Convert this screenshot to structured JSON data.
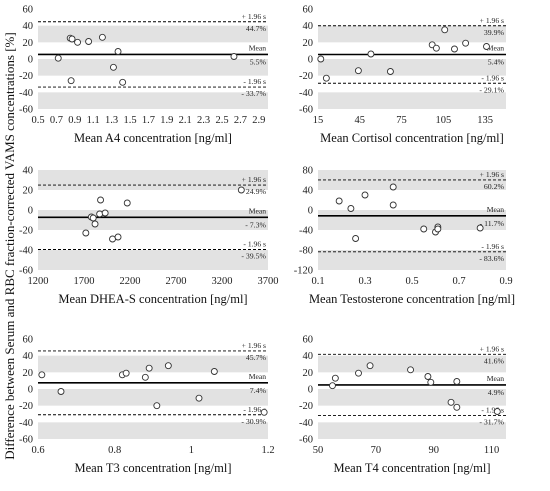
{
  "figure": {
    "ylabel": "Difference between Serum and RBC fraction-corrected VAMS concentrations [%]"
  },
  "chart_data": [
    {
      "type": "scatter",
      "xlabel": "Mean A4  concentration [ng/ml]",
      "xlim": [
        0.5,
        3.0
      ],
      "xticks": [
        0.5,
        0.7,
        0.9,
        1.1,
        1.3,
        1.5,
        1.7,
        1.9,
        2.1,
        2.3,
        2.5,
        2.7,
        2.9
      ],
      "xtick_labels": [
        "0.5",
        "",
        "",
        "",
        "",
        "1.5",
        "",
        "",
        "",
        "",
        "2.5",
        "",
        ""
      ],
      "xtick_labels_shown": [
        "0.5",
        "0.7",
        "0.9",
        "1.1",
        "1.3",
        "1.5",
        "1.7",
        "1.9",
        "2.1",
        "2.3",
        "2.5",
        "2.7",
        "2.9"
      ],
      "ylim": [
        -60,
        60
      ],
      "yticks": [
        -60,
        -40,
        -20,
        0,
        20,
        40,
        60
      ],
      "mean": 5.5,
      "upper": 44.7,
      "lower": -33.7,
      "upper_label": "+ 1.96 s",
      "lower_label": "- 1.96 s",
      "mean_label": "Mean",
      "mean_text": "5.5%",
      "upper_text": "44.7%",
      "lower_text": "- 33.7%",
      "points": [
        [
          0.72,
          1
        ],
        [
          0.85,
          25
        ],
        [
          0.87,
          24
        ],
        [
          0.93,
          20
        ],
        [
          1.05,
          21
        ],
        [
          1.2,
          26
        ],
        [
          1.32,
          -10
        ],
        [
          1.37,
          9
        ],
        [
          1.42,
          -28
        ],
        [
          0.86,
          -26
        ],
        [
          2.63,
          3
        ]
      ]
    },
    {
      "type": "scatter",
      "xlabel": "Mean Cortisol concentration [ng/ml]",
      "xlim": [
        15,
        150
      ],
      "xticks": [
        15,
        45,
        75,
        105,
        135
      ],
      "xtick_labels_shown": [
        "15",
        "45",
        "75",
        "105",
        "135"
      ],
      "ylim": [
        -60,
        60
      ],
      "yticks": [
        -60,
        -40,
        -20,
        0,
        20,
        40,
        60
      ],
      "mean": 5.4,
      "upper": 39.9,
      "lower": -29.1,
      "upper_label": "+ 1.96 s",
      "lower_label": "- 1.96 s",
      "mean_label": "Mean",
      "mean_text": "5.4%",
      "upper_text": "39.9%",
      "lower_text": "- 29.1%",
      "points": [
        [
          17,
          0
        ],
        [
          21,
          -23
        ],
        [
          44,
          -14
        ],
        [
          53,
          6
        ],
        [
          67,
          -15
        ],
        [
          97,
          17
        ],
        [
          100,
          13
        ],
        [
          106,
          35
        ],
        [
          113,
          12
        ],
        [
          121,
          19
        ],
        [
          136,
          15
        ]
      ]
    },
    {
      "type": "scatter",
      "xlabel": "Mean DHEA-S concentration [ng/ml]",
      "xlim": [
        1200,
        3700
      ],
      "xticks": [
        1200,
        1700,
        2200,
        2700,
        3200,
        3700
      ],
      "xtick_labels_shown": [
        "1200",
        "1700",
        "2200",
        "2700",
        "3200",
        "3700"
      ],
      "ylim": [
        -60,
        40
      ],
      "yticks": [
        -60,
        -40,
        -20,
        0,
        20,
        40
      ],
      "mean": -7.3,
      "upper": 24.9,
      "lower": -39.5,
      "upper_label": "+ 1.96 s",
      "lower_label": "- 1.96 s",
      "mean_label": "Mean",
      "mean_text": "- 7.3%",
      "upper_text": "24.9%",
      "lower_text": "- 39.5%",
      "points": [
        [
          1720,
          -23
        ],
        [
          1780,
          -7
        ],
        [
          1820,
          -14
        ],
        [
          1870,
          -4
        ],
        [
          1880,
          10
        ],
        [
          1930,
          -3
        ],
        [
          2010,
          -29
        ],
        [
          2070,
          -27
        ],
        [
          2170,
          7
        ],
        [
          3410,
          20
        ],
        [
          1800,
          -8
        ]
      ]
    },
    {
      "type": "scatter",
      "xlabel": "Mean Testosterone concentration [ng/ml]",
      "xlim": [
        0.1,
        0.9
      ],
      "xticks": [
        0.1,
        0.3,
        0.5,
        0.7,
        0.9
      ],
      "xtick_labels_shown": [
        "0.1",
        "0.3",
        "0.5",
        "0.7",
        "0.9"
      ],
      "ylim": [
        -120,
        80
      ],
      "yticks": [
        -120,
        -80,
        -40,
        0,
        40,
        80
      ],
      "mean": -11.7,
      "upper": 60.2,
      "lower": -83.6,
      "upper_label": "+ 1.96 s",
      "lower_label": "- 1.96 s",
      "mean_label": "Mean",
      "mean_text": "- 11.7%",
      "upper_text": "60.2%",
      "lower_text": "- 83.6%",
      "points": [
        [
          0.19,
          18
        ],
        [
          0.24,
          3
        ],
        [
          0.26,
          -57
        ],
        [
          0.3,
          30
        ],
        [
          0.42,
          10
        ],
        [
          0.42,
          46
        ],
        [
          0.55,
          -38
        ],
        [
          0.6,
          -44
        ],
        [
          0.61,
          -34
        ],
        [
          0.79,
          -36
        ],
        [
          0.61,
          -38
        ]
      ]
    },
    {
      "type": "scatter",
      "xlabel": "Mean T3 concentration [ng/ml]",
      "xlim": [
        0.6,
        1.2
      ],
      "xticks": [
        0.6,
        0.8,
        1.0,
        1.2
      ],
      "xtick_labels_shown": [
        "0.6",
        "0.8",
        "1",
        "1.2"
      ],
      "ylim": [
        -60,
        60
      ],
      "yticks": [
        -60,
        -40,
        -20,
        0,
        20,
        40,
        60
      ],
      "mean": 7.4,
      "upper": 45.7,
      "lower": -30.9,
      "upper_label": "+ 1.96 s",
      "lower_label": "- 1.96 s",
      "mean_label": "Mean",
      "mean_text": "7.4%",
      "upper_text": "45.7%",
      "lower_text": "- 30.9%",
      "points": [
        [
          0.61,
          17
        ],
        [
          0.66,
          -3
        ],
        [
          0.82,
          17
        ],
        [
          0.83,
          19
        ],
        [
          0.88,
          14
        ],
        [
          0.89,
          25
        ],
        [
          0.91,
          -20
        ],
        [
          0.94,
          28
        ],
        [
          1.02,
          -11
        ],
        [
          1.06,
          21
        ],
        [
          1.19,
          -28
        ]
      ]
    },
    {
      "type": "scatter",
      "xlabel": "Mean T4 concentration [ng/ml]",
      "xlim": [
        50,
        115
      ],
      "xticks": [
        50,
        70,
        90,
        110
      ],
      "xtick_labels_shown": [
        "50",
        "70",
        "90",
        "110"
      ],
      "ylim": [
        -60,
        60
      ],
      "yticks": [
        -60,
        -40,
        -20,
        0,
        20,
        40,
        60
      ],
      "mean": 4.9,
      "upper": 41.6,
      "lower": -31.7,
      "upper_label": "+ 1.96 s",
      "lower_label": "- 1.96 s",
      "mean_label": "Mean",
      "mean_text": "4.9%",
      "upper_text": "41.6%",
      "lower_text": "- 31.7%",
      "points": [
        [
          55,
          4
        ],
        [
          56,
          13
        ],
        [
          64,
          19
        ],
        [
          68,
          28
        ],
        [
          82,
          23
        ],
        [
          88,
          15
        ],
        [
          89,
          8
        ],
        [
          96,
          -16
        ],
        [
          98,
          -22
        ],
        [
          98,
          9
        ],
        [
          112,
          -27
        ]
      ]
    }
  ],
  "colors": {
    "band": "#e2e2e2",
    "line": "#000000",
    "grid": "#ffffff"
  }
}
